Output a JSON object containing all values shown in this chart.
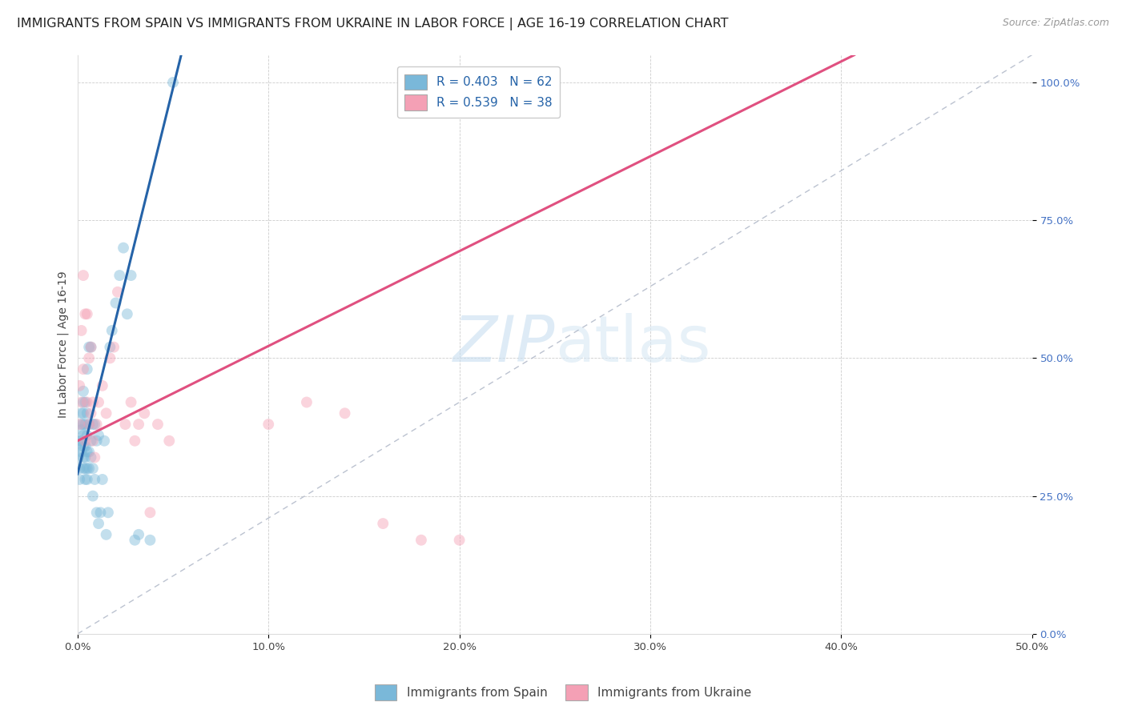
{
  "title": "IMMIGRANTS FROM SPAIN VS IMMIGRANTS FROM UKRAINE IN LABOR FORCE | AGE 16-19 CORRELATION CHART",
  "source": "Source: ZipAtlas.com",
  "ylabel": "In Labor Force | Age 16-19",
  "xlim": [
    0.0,
    0.5
  ],
  "ylim": [
    0.0,
    1.05
  ],
  "xticks": [
    0.0,
    0.1,
    0.2,
    0.3,
    0.4,
    0.5
  ],
  "xtick_labels": [
    "0.0%",
    "10.0%",
    "20.0%",
    "30.0%",
    "40.0%",
    "50.0%"
  ],
  "yticks": [
    0.0,
    0.25,
    0.5,
    0.75,
    1.0
  ],
  "ytick_labels": [
    "0.0%",
    "25.0%",
    "50.0%",
    "75.0%",
    "100.0%"
  ],
  "legend_label1": "Immigrants from Spain",
  "legend_label2": "Immigrants from Ukraine",
  "color_spain": "#7ab8d9",
  "color_ukraine": "#f4a0b5",
  "color_spain_line": "#2563a8",
  "color_ukraine_line": "#e05080",
  "color_diag": "#b0b8c8",
  "R_spain": 0.403,
  "N_spain": 62,
  "R_ukraine": 0.539,
  "N_ukraine": 38,
  "spain_x": [
    0.0005,
    0.001,
    0.001,
    0.001,
    0.001,
    0.002,
    0.002,
    0.002,
    0.002,
    0.002,
    0.003,
    0.003,
    0.003,
    0.003,
    0.003,
    0.003,
    0.003,
    0.003,
    0.004,
    0.004,
    0.004,
    0.004,
    0.004,
    0.004,
    0.005,
    0.005,
    0.005,
    0.005,
    0.005,
    0.005,
    0.006,
    0.006,
    0.006,
    0.006,
    0.007,
    0.007,
    0.007,
    0.008,
    0.008,
    0.008,
    0.009,
    0.009,
    0.01,
    0.01,
    0.011,
    0.011,
    0.012,
    0.013,
    0.014,
    0.015,
    0.016,
    0.017,
    0.018,
    0.02,
    0.022,
    0.024,
    0.026,
    0.028,
    0.03,
    0.032,
    0.038,
    0.05
  ],
  "spain_y": [
    0.32,
    0.28,
    0.3,
    0.34,
    0.35,
    0.33,
    0.35,
    0.37,
    0.38,
    0.4,
    0.3,
    0.32,
    0.34,
    0.36,
    0.38,
    0.4,
    0.42,
    0.44,
    0.28,
    0.3,
    0.32,
    0.34,
    0.38,
    0.42,
    0.28,
    0.3,
    0.33,
    0.36,
    0.4,
    0.48,
    0.3,
    0.33,
    0.38,
    0.52,
    0.32,
    0.35,
    0.52,
    0.25,
    0.3,
    0.38,
    0.28,
    0.38,
    0.22,
    0.35,
    0.2,
    0.36,
    0.22,
    0.28,
    0.35,
    0.18,
    0.22,
    0.52,
    0.55,
    0.6,
    0.65,
    0.7,
    0.58,
    0.65,
    0.17,
    0.18,
    0.17,
    1.0
  ],
  "ukraine_x": [
    0.001,
    0.001,
    0.002,
    0.002,
    0.003,
    0.003,
    0.004,
    0.004,
    0.005,
    0.005,
    0.006,
    0.006,
    0.007,
    0.007,
    0.008,
    0.008,
    0.009,
    0.01,
    0.011,
    0.013,
    0.015,
    0.017,
    0.019,
    0.021,
    0.025,
    0.028,
    0.03,
    0.032,
    0.035,
    0.038,
    0.042,
    0.048,
    0.1,
    0.12,
    0.14,
    0.16,
    0.18,
    0.2
  ],
  "ukraine_y": [
    0.38,
    0.45,
    0.42,
    0.55,
    0.48,
    0.65,
    0.35,
    0.58,
    0.42,
    0.58,
    0.38,
    0.5,
    0.4,
    0.52,
    0.35,
    0.42,
    0.32,
    0.38,
    0.42,
    0.45,
    0.4,
    0.5,
    0.52,
    0.62,
    0.38,
    0.42,
    0.35,
    0.38,
    0.4,
    0.22,
    0.38,
    0.35,
    0.38,
    0.42,
    0.4,
    0.2,
    0.17,
    0.17
  ],
  "background_color": "#ffffff",
  "title_fontsize": 11.5,
  "axis_label_fontsize": 10,
  "tick_fontsize": 9.5,
  "legend_fontsize": 11,
  "source_fontsize": 9,
  "marker_size": 100,
  "marker_alpha": 0.45,
  "line_width": 2.2,
  "spain_reg_slope": 14.0,
  "spain_reg_intercept": 0.29,
  "ukraine_reg_slope": 1.72,
  "ukraine_reg_intercept": 0.35
}
